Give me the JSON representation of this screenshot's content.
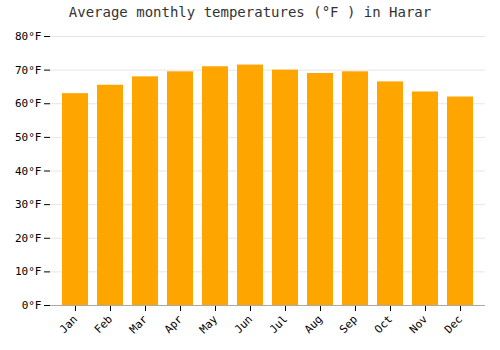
{
  "chart_data": {
    "type": "bar",
    "title": "Average monthly temperatures (°F ) in Harar",
    "categories": [
      "Jan",
      "Feb",
      "Mar",
      "Apr",
      "May",
      "Jun",
      "Jul",
      "Aug",
      "Sep",
      "Oct",
      "Nov",
      "Dec"
    ],
    "values": [
      63,
      65.5,
      68,
      69.5,
      71,
      71.5,
      70,
      69,
      69.5,
      66.5,
      63.5,
      62
    ],
    "color": "#FFA500",
    "ylim": [
      0,
      80
    ],
    "yticks": [
      {
        "value": 0,
        "label": "0°F"
      },
      {
        "value": 10,
        "label": "10°F"
      },
      {
        "value": 20,
        "label": "20°F"
      },
      {
        "value": 30,
        "label": "30°F"
      },
      {
        "value": 40,
        "label": "40°F"
      },
      {
        "value": 50,
        "label": "50°F"
      },
      {
        "value": 60,
        "label": "60°F"
      },
      {
        "value": 70,
        "label": "70°F"
      },
      {
        "value": 80,
        "label": "80°F"
      }
    ],
    "grid": true
  }
}
